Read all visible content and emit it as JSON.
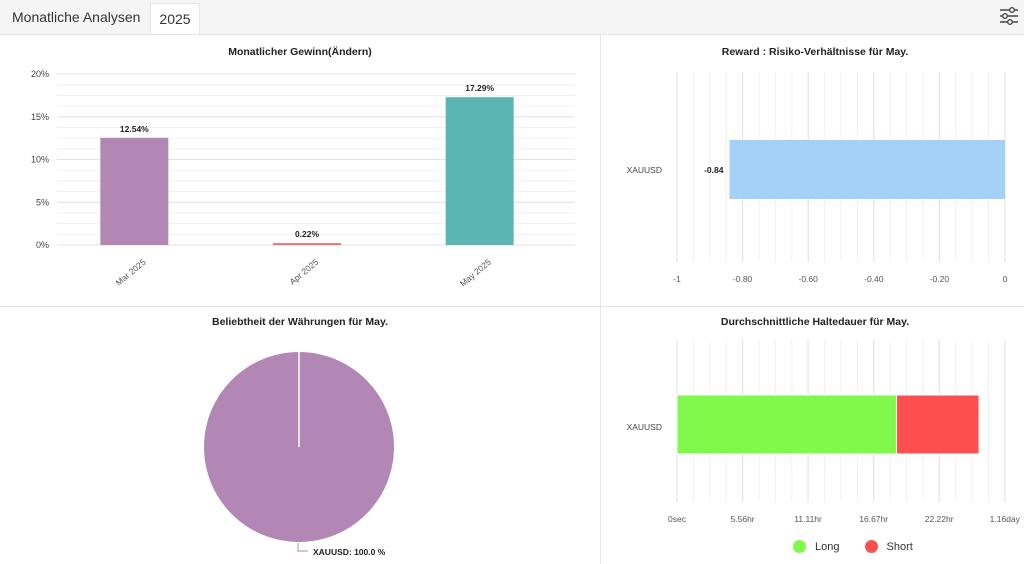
{
  "header": {
    "title": "Monatliche Analysen",
    "year_tab": "2025",
    "settings_icon": "sliders-icon"
  },
  "colors": {
    "purple": "#b286b5",
    "red": "#f07070",
    "teal": "#5bb5b3",
    "blue": "#a3d1f7",
    "green": "#80f94b",
    "short_red": "#fe4f4f"
  },
  "chart_data": [
    {
      "type": "bar",
      "title": "Monatlicher Gewinn(Ändern)",
      "categories": [
        "Mar 2025",
        "Apr 2025",
        "May 2025"
      ],
      "values": [
        12.54,
        0.22,
        17.29
      ],
      "value_labels": [
        "12.54%",
        "0.22%",
        "17.29%"
      ],
      "bar_colors": [
        "#b286b5",
        "#f07070",
        "#5bb5b3"
      ],
      "ylim": [
        0,
        20
      ],
      "yticks": [
        0,
        5,
        10,
        15,
        20
      ],
      "ytick_labels": [
        "0%",
        "5%",
        "10%",
        "15%",
        "20%"
      ],
      "grid": true
    },
    {
      "type": "bar",
      "orientation": "horizontal",
      "title": "Reward : Risiko-Verhältnisse für May.",
      "categories": [
        "XAUUSD"
      ],
      "values": [
        -0.84
      ],
      "value_labels": [
        "-0.84"
      ],
      "bar_color": "#a3d1f7",
      "xlim": [
        -1,
        0
      ],
      "xticks": [
        -1,
        -0.8,
        -0.6,
        -0.4,
        -0.2,
        0
      ],
      "xtick_labels": [
        "-1",
        "-0.80",
        "-0.60",
        "-0.40",
        "-0.20",
        "0"
      ],
      "grid": true
    },
    {
      "type": "pie",
      "title": "Beliebtheit der Währungen für May.",
      "slices": [
        {
          "label": "XAUUSD",
          "value": 100.0,
          "color": "#b286b5"
        }
      ],
      "slice_labels": [
        "XAUUSD: 100.0 %"
      ]
    },
    {
      "type": "bar",
      "orientation": "horizontal",
      "stacked": true,
      "title": "Durchschnittliche Haltedauer für May.",
      "categories": [
        "XAUUSD"
      ],
      "series": [
        {
          "name": "Long",
          "values": [
            18.6
          ],
          "color": "#80f94b"
        },
        {
          "name": "Short",
          "values": [
            7.0
          ],
          "color": "#fe4f4f"
        }
      ],
      "x_unit": "hr",
      "xlim": [
        0,
        27.8
      ],
      "xticks": [
        0,
        5.56,
        11.11,
        16.67,
        22.22,
        27.78
      ],
      "xtick_labels": [
        "0sec",
        "5.56hr",
        "11.11hr",
        "16.67hr",
        "22.22hr",
        "1.16day"
      ],
      "legend": "bottom",
      "grid": true
    }
  ]
}
